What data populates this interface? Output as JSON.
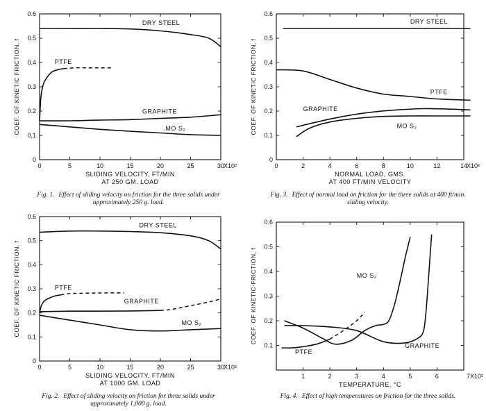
{
  "chart_data": [
    {
      "type": "line",
      "figure_label": "Fig. 1.",
      "caption": "Effect of sliding velocity on friction for the three solids under approximately 250 g. load.",
      "xlabel": "SLIDING VELOCITY, FT/MIN",
      "xlabel2": "AT 250 GM. LOAD",
      "ylabel": "COEF. OF KINETIC FRICTION, f",
      "x_multiplier": "X10²",
      "xlim": [
        0,
        3000
      ],
      "ylim": [
        0,
        0.6
      ],
      "xticks": [
        0,
        500,
        1000,
        1500,
        2000,
        2500,
        3000
      ],
      "xtick_labels": [
        "0",
        "5",
        "10",
        "15",
        "20",
        "25",
        "30"
      ],
      "yticks": [
        0,
        0.1,
        0.2,
        0.3,
        0.4,
        0.5,
        0.6
      ],
      "ytick_labels": [
        "0",
        "0,1",
        "0.2",
        "0.3",
        "0.4",
        "0.5",
        "0.6"
      ],
      "series": [
        {
          "name": "DRY STEEL",
          "x": [
            0,
            300,
            1000,
            1500,
            2000,
            2500,
            2800,
            3000
          ],
          "y": [
            0.54,
            0.54,
            0.54,
            0.538,
            0.53,
            0.515,
            0.5,
            0.465
          ],
          "dashed_from": null
        },
        {
          "name": "PTFE",
          "x": [
            0,
            20,
            50,
            100,
            200,
            300,
            400,
            600,
            800,
            1000,
            1200
          ],
          "y": [
            0.16,
            0.25,
            0.3,
            0.33,
            0.36,
            0.37,
            0.375,
            0.378,
            0.378,
            0.378,
            0.378
          ],
          "dashed_from": 400
        },
        {
          "name": "GRAPHITE",
          "x": [
            0,
            500,
            1000,
            1500,
            2000,
            2500,
            3000
          ],
          "y": [
            0.16,
            0.16,
            0.163,
            0.165,
            0.17,
            0.175,
            0.185
          ],
          "dashed_from": null
        },
        {
          "name": "MO S₂",
          "x": [
            0,
            500,
            1000,
            1500,
            2000,
            2500,
            3000
          ],
          "y": [
            0.145,
            0.135,
            0.125,
            0.117,
            0.11,
            0.103,
            0.1
          ],
          "dashed_from": null
        }
      ],
      "labels": [
        {
          "text": "DRY STEEL",
          "x": 1700,
          "y": 0.555
        },
        {
          "text": "PTFE",
          "x": 250,
          "y": 0.395
        },
        {
          "text": "GRAPHITE",
          "x": 1700,
          "y": 0.19
        },
        {
          "text": ".MO S₂",
          "x": 2050,
          "y": 0.12
        }
      ]
    },
    {
      "type": "line",
      "figure_label": "Fig. 2.",
      "caption": "Effect of sliding velocity on friction for three solids under approximately 1,000 g. load.",
      "xlabel": "SLIDING VELOCITY, FT/MIN",
      "xlabel2": "AT 1000 GM. LOAD",
      "ylabel": "COEF. OF KINETIC FRICTION, f",
      "x_multiplier": "X10²",
      "xlim": [
        0,
        3000
      ],
      "ylim": [
        0,
        0.6
      ],
      "xticks": [
        0,
        500,
        1000,
        1500,
        2000,
        2500,
        3000
      ],
      "xtick_labels": [
        "0",
        "5",
        "10",
        "15",
        "20",
        "25",
        "30"
      ],
      "yticks": [
        0,
        0.1,
        0.2,
        0.3,
        0.4,
        0.5,
        0.6
      ],
      "ytick_labels": [
        "0",
        "0.1",
        "0.2",
        "0.3",
        "0.4",
        "0.5",
        "0.6"
      ],
      "series": [
        {
          "name": "DRY STEEL",
          "x": [
            0,
            500,
            1000,
            1500,
            2000,
            2500,
            2800,
            3000
          ],
          "y": [
            0.535,
            0.54,
            0.54,
            0.538,
            0.533,
            0.52,
            0.5,
            0.465
          ],
          "dashed_from": null
        },
        {
          "name": "PTFE",
          "x": [
            0,
            30,
            80,
            150,
            250,
            350,
            500,
            800,
            1100,
            1400
          ],
          "y": [
            0.2,
            0.23,
            0.25,
            0.26,
            0.27,
            0.275,
            0.28,
            0.282,
            0.283,
            0.283
          ],
          "dashed_from": 350
        },
        {
          "name": "GRAPHITE",
          "x": [
            0,
            500,
            1000,
            1500,
            2000,
            2200,
            2500,
            2800,
            3000
          ],
          "y": [
            0.205,
            0.207,
            0.207,
            0.208,
            0.21,
            0.215,
            0.23,
            0.245,
            0.258
          ],
          "dashed_from": 2000
        },
        {
          "name": "MO S₂",
          "x": [
            0,
            500,
            1000,
            1500,
            2000,
            2500,
            3000
          ],
          "y": [
            0.19,
            0.17,
            0.15,
            0.13,
            0.125,
            0.13,
            0.135
          ],
          "dashed_from": null
        }
      ],
      "labels": [
        {
          "text": "DRY STEEL",
          "x": 1650,
          "y": 0.555
        },
        {
          "text": "PTFE",
          "x": 250,
          "y": 0.295
        },
        {
          "text": "GRAPHITE",
          "x": 1400,
          "y": 0.24
        },
        {
          "text": "MO S₂",
          "x": 2350,
          "y": 0.15
        }
      ]
    },
    {
      "type": "line",
      "figure_label": "Fig. 3.",
      "caption": "Effect of normal load on friction for the three solids at 400 ft/min. sliding velocity.",
      "xlabel": "NORMAL LOAD, GMS.",
      "xlabel2": "AT 400 FT/MIN VELOCITY",
      "ylabel": "COEF. OF KINETIC FRICTION, f",
      "x_multiplier": "X10²",
      "xlim": [
        0,
        1400
      ],
      "ylim": [
        0,
        0.6
      ],
      "xticks": [
        0,
        200,
        400,
        600,
        800,
        1000,
        1200,
        1400
      ],
      "xtick_labels": [
        "0",
        "2",
        "4",
        "6",
        "8",
        "10",
        "12",
        "14"
      ],
      "yticks": [
        0,
        0.1,
        0.2,
        0.3,
        0.4,
        0.5,
        0.6
      ],
      "ytick_labels": [
        "0",
        "0.1",
        "0.2",
        "0.3",
        "0.4",
        "0.5",
        "0.6"
      ],
      "series": [
        {
          "name": "DRY STEEL",
          "x": [
            50,
            400,
            800,
            1200,
            1450
          ],
          "y": [
            0.54,
            0.54,
            0.54,
            0.54,
            0.54
          ],
          "dashed_from": null
        },
        {
          "name": "PTFE",
          "x": [
            0,
            200,
            400,
            600,
            800,
            1000,
            1200,
            1450
          ],
          "y": [
            0.37,
            0.365,
            0.33,
            0.295,
            0.27,
            0.26,
            0.25,
            0.245
          ],
          "dashed_from": null
        },
        {
          "name": "GRAPHITE",
          "x": [
            150,
            300,
            500,
            700,
            900,
            1100,
            1300,
            1450
          ],
          "y": [
            0.135,
            0.155,
            0.178,
            0.195,
            0.205,
            0.21,
            0.208,
            0.205
          ],
          "dashed_from": null
        },
        {
          "name": "MO S₂",
          "x": [
            150,
            250,
            400,
            600,
            800,
            1000,
            1200,
            1450
          ],
          "y": [
            0.095,
            0.13,
            0.155,
            0.17,
            0.178,
            0.18,
            0.18,
            0.18
          ],
          "dashed_from": null
        }
      ],
      "labels": [
        {
          "text": "DRY STEEL",
          "x": 1000,
          "y": 0.56
        },
        {
          "text": "PTFE",
          "x": 1150,
          "y": 0.27
        },
        {
          "text": "GRAPHITE",
          "x": 200,
          "y": 0.2
        },
        {
          "text": "MO S₂",
          "x": 900,
          "y": 0.13
        }
      ]
    },
    {
      "type": "line",
      "figure_label": "Fig. 4.",
      "caption": "Effect of high temperatures on friction for the three solids.",
      "xlabel": "TEMPERATURE, °C",
      "xlabel2": "",
      "ylabel": "COEF. OF KINETIC·FRICTION, f",
      "x_multiplier": "7X10²",
      "xlim": [
        0,
        700
      ],
      "ylim": [
        0,
        0.6
      ],
      "xticks": [
        0,
        100,
        200,
        300,
        400,
        500,
        600
      ],
      "xtick_labels": [
        "",
        "1",
        "2",
        "3",
        "4",
        "5",
        "6"
      ],
      "yticks": [
        0.1,
        0.2,
        0.3,
        0.4,
        0.5,
        0.6
      ],
      "ytick_labels": [
        "0.1",
        "0.2",
        "0.3",
        "0.4",
        "0.5",
        "0.6"
      ],
      "series": [
        {
          "name": "PTFE",
          "x": [
            20,
            60,
            100,
            150,
            200,
            250,
            300,
            330
          ],
          "y": [
            0.09,
            0.09,
            0.095,
            0.105,
            0.125,
            0.16,
            0.2,
            0.235
          ],
          "dashed_from": 200
        },
        {
          "name": "MO S₂",
          "x": [
            30,
            100,
            170,
            220,
            280,
            330,
            370,
            400,
            420,
            440,
            460,
            480,
            500
          ],
          "y": [
            0.2,
            0.17,
            0.13,
            0.105,
            0.12,
            0.16,
            0.18,
            0.185,
            0.2,
            0.26,
            0.35,
            0.45,
            0.54
          ],
          "dashed_from": null
        },
        {
          "name": "GRAPHITE",
          "x": [
            30,
            100,
            200,
            300,
            400,
            480,
            530,
            550,
            560,
            570,
            580
          ],
          "y": [
            0.18,
            0.18,
            0.175,
            0.16,
            0.115,
            0.11,
            0.13,
            0.16,
            0.25,
            0.4,
            0.55
          ],
          "dashed_from": null
        }
      ],
      "labels": [
        {
          "text": "MO S₂",
          "x": 300,
          "y": 0.375
        },
        {
          "text": "GRAPHITE",
          "x": 480,
          "y": 0.09
        },
        {
          "text": "PTFE",
          "x": 70,
          "y": 0.065
        }
      ]
    }
  ]
}
